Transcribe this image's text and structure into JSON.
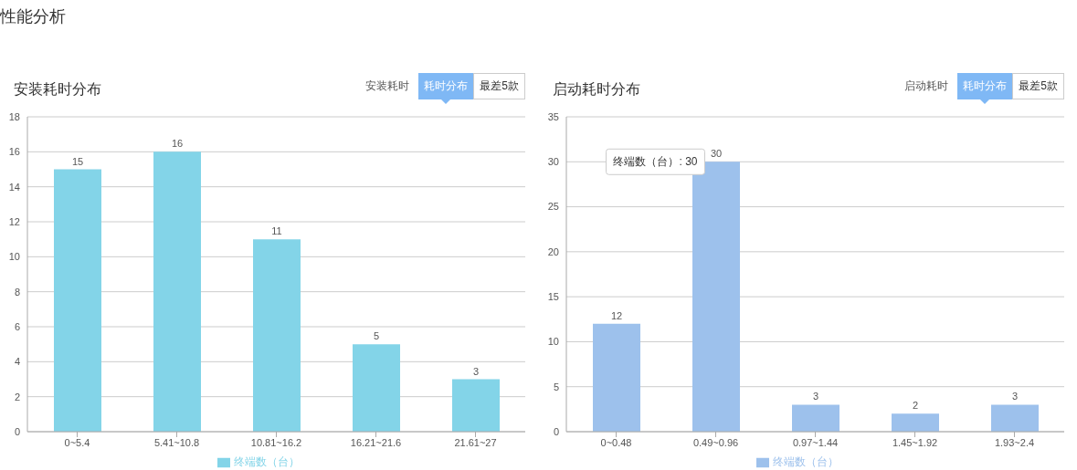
{
  "chart_data": [
    {
      "type": "other",
      "title": "性能分析"
    },
    {
      "type": "bar",
      "title": "安装耗时分布",
      "annotations": [
        "安装耗时",
        "耗时分布",
        "最差5款"
      ],
      "categories": [
        "0~5.4",
        "5.41~10.8",
        "10.81~16.2",
        "16.21~21.6",
        "21.61~27"
      ],
      "series": [
        {
          "name": "终端数（台）",
          "color": "#83d4e8",
          "values": [
            15,
            16,
            11,
            5,
            3
          ]
        }
      ],
      "ylim": [
        0,
        18
      ],
      "yticks": [
        0,
        2,
        4,
        6,
        8,
        10,
        12,
        14,
        16,
        18
      ],
      "grid": "y",
      "legend": "bottom",
      "data_labels": true
    },
    {
      "type": "bar",
      "title": "启动耗时分布",
      "annotations": [
        "启动耗时",
        "耗时分布",
        "最差5款",
        {
          "text": "终端数（台）: 30",
          "x": "0.49~0.96",
          "y": 30
        }
      ],
      "categories": [
        "0~0.48",
        "0.49~0.96",
        "0.97~1.44",
        "1.45~1.92",
        "1.93~2.4"
      ],
      "series": [
        {
          "name": "终端数（台）",
          "color": "#9dc1ec",
          "values": [
            12,
            30,
            3,
            2,
            3
          ]
        }
      ],
      "ylim": [
        0,
        35
      ],
      "yticks": [
        0,
        5,
        10,
        15,
        20,
        25,
        30,
        35
      ],
      "grid": "y",
      "legend": "bottom",
      "data_labels": true
    }
  ]
}
